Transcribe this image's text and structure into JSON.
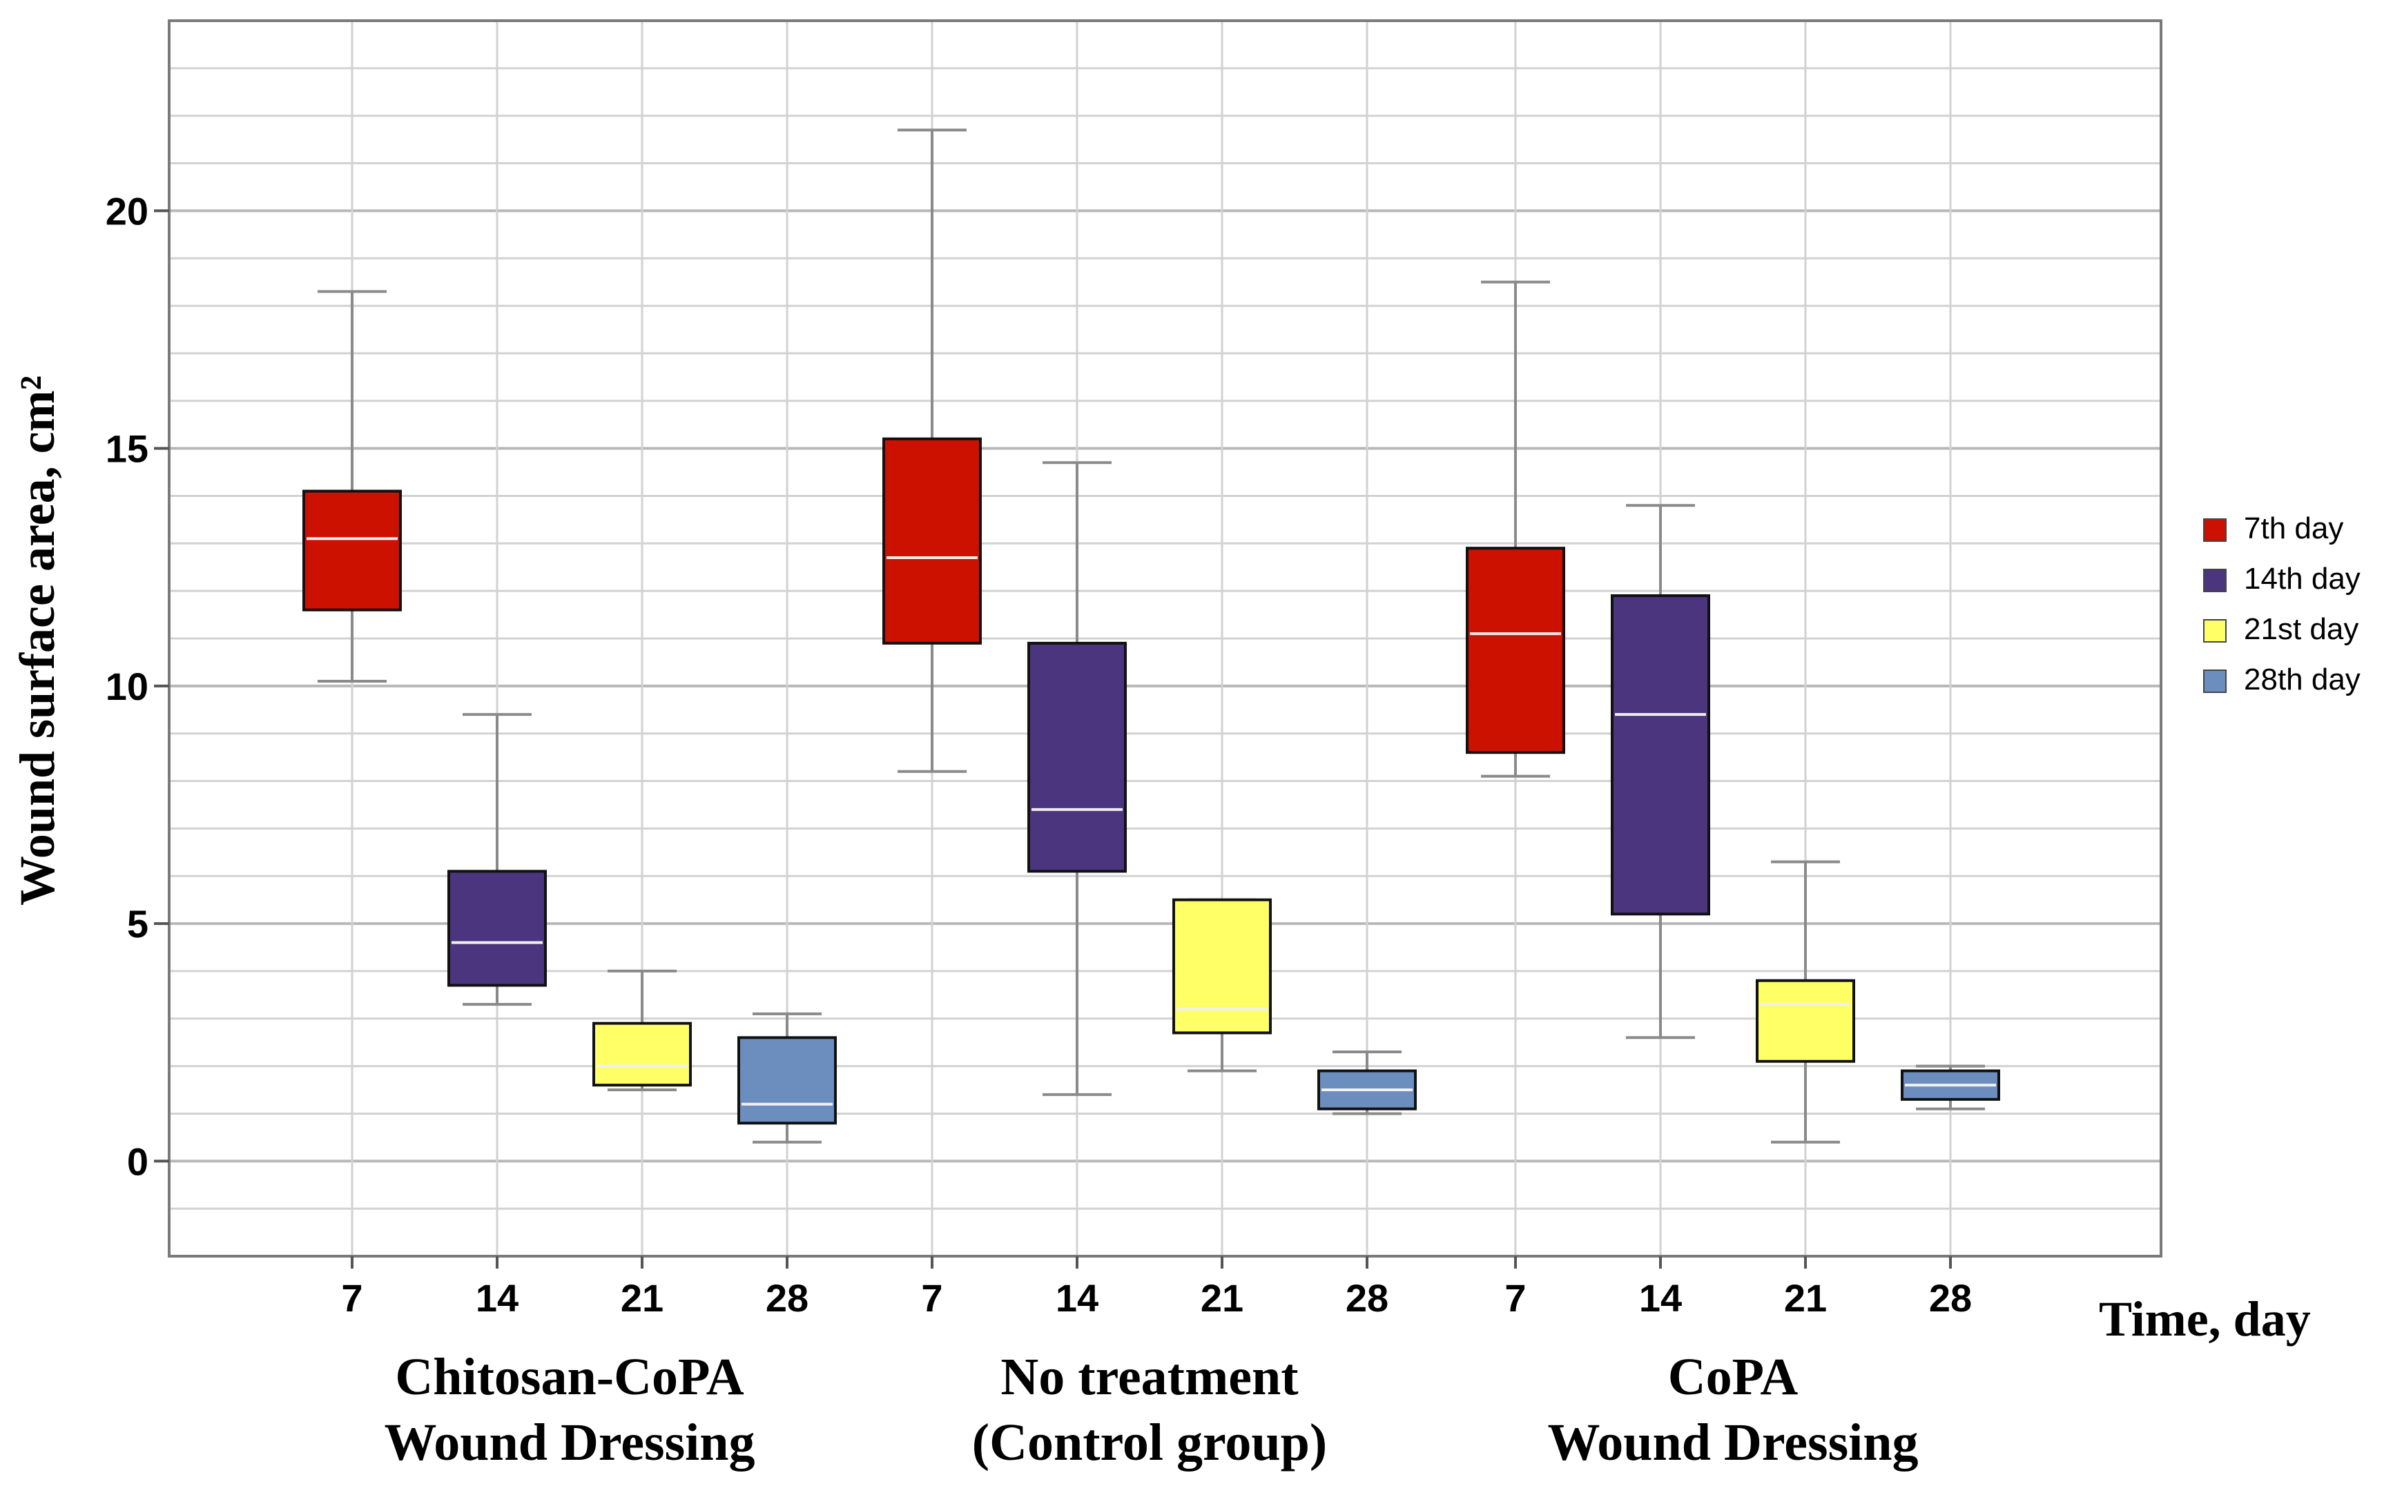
{
  "chart_data": {
    "type": "boxplot",
    "ylabel": "Wound surface area, cm²",
    "xlabel": "Time, day",
    "ylim": [
      -2,
      24
    ],
    "yticks": [
      0,
      5,
      10,
      15,
      20
    ],
    "grid": true,
    "legend": {
      "position": "right",
      "entries": [
        {
          "label": "7th day",
          "color": "#cc1100"
        },
        {
          "label": "14th day",
          "color": "#4b357e"
        },
        {
          "label": "21st day",
          "color": "#ffff66"
        },
        {
          "label": "28th day",
          "color": "#6c8ebf"
        }
      ]
    },
    "groups": [
      {
        "name_lines": [
          "Chitosan-CoPA",
          "Wound Dressing"
        ],
        "boxes": [
          {
            "day": "7",
            "series": 0,
            "min": 10.1,
            "q1": 11.6,
            "median": 13.1,
            "q3": 14.1,
            "max": 18.3
          },
          {
            "day": "14",
            "series": 1,
            "min": 3.3,
            "q1": 3.7,
            "median": 4.6,
            "q3": 6.1,
            "max": 9.4
          },
          {
            "day": "21",
            "series": 2,
            "min": 1.5,
            "q1": 1.6,
            "median": 2.0,
            "q3": 2.9,
            "max": 4.0
          },
          {
            "day": "28",
            "series": 3,
            "min": 0.4,
            "q1": 0.8,
            "median": 1.2,
            "q3": 2.6,
            "max": 3.1
          }
        ]
      },
      {
        "name_lines": [
          "No treatment",
          "(Control group)"
        ],
        "boxes": [
          {
            "day": "7",
            "series": 0,
            "min": 8.2,
            "q1": 10.9,
            "median": 12.7,
            "q3": 15.2,
            "max": 21.7
          },
          {
            "day": "14",
            "series": 1,
            "min": 1.4,
            "q1": 6.1,
            "median": 7.4,
            "q3": 10.9,
            "max": 14.7
          },
          {
            "day": "21",
            "series": 2,
            "min": 1.9,
            "q1": 2.7,
            "median": 3.2,
            "q3": 5.5,
            "max": 5.5
          },
          {
            "day": "28",
            "series": 3,
            "min": 1.0,
            "q1": 1.1,
            "median": 1.5,
            "q3": 1.9,
            "max": 2.3
          }
        ]
      },
      {
        "name_lines": [
          "CoPA",
          "Wound Dressing"
        ],
        "boxes": [
          {
            "day": "7",
            "series": 0,
            "min": 8.1,
            "q1": 8.6,
            "median": 11.1,
            "q3": 12.9,
            "max": 18.5
          },
          {
            "day": "14",
            "series": 1,
            "min": 2.6,
            "q1": 5.2,
            "median": 9.4,
            "q3": 11.9,
            "max": 13.8
          },
          {
            "day": "21",
            "series": 2,
            "min": 0.4,
            "q1": 2.1,
            "median": 3.3,
            "q3": 3.8,
            "max": 6.3
          },
          {
            "day": "28",
            "series": 3,
            "min": 1.1,
            "q1": 1.3,
            "median": 1.6,
            "q3": 1.9,
            "max": 2.0
          }
        ]
      }
    ]
  }
}
